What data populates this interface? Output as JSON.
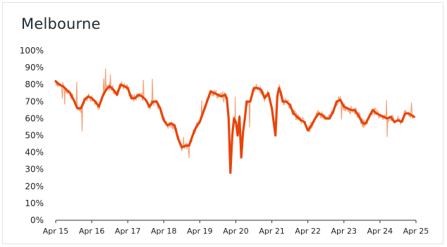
{
  "chart_data": {
    "type": "line",
    "title": "Melbourne",
    "xlabel": "",
    "ylabel": "",
    "ylim": [
      0,
      100
    ],
    "y_ticks": [
      "0%",
      "10%",
      "20%",
      "30%",
      "40%",
      "50%",
      "60%",
      "70%",
      "80%",
      "90%",
      "100%"
    ],
    "x_ticks": [
      "Apr 15",
      "Apr 16",
      "Apr 17",
      "Apr 18",
      "Apr 19",
      "Apr 20",
      "Apr 21",
      "Apr 22",
      "Apr 23",
      "Apr 24",
      "Apr 25"
    ],
    "grid": false,
    "colors": {
      "smoothed": "#e8450a",
      "raw": "#f2a27a",
      "axis": "#333333"
    },
    "series": [
      {
        "x": [
          2015.25,
          2015.35,
          2015.45,
          2015.55,
          2015.65,
          2015.75,
          2015.85,
          2015.95,
          2016.05,
          2016.15,
          2016.25,
          2016.35,
          2016.45,
          2016.55,
          2016.65,
          2016.75,
          2016.85,
          2016.95,
          2017.05,
          2017.15,
          2017.25,
          2017.35,
          2017.45,
          2017.55,
          2017.65,
          2017.75,
          2017.85,
          2017.95,
          2018.05,
          2018.15,
          2018.25,
          2018.35,
          2018.45,
          2018.55,
          2018.65,
          2018.75,
          2018.85,
          2018.95,
          2019.05,
          2019.15,
          2019.25,
          2019.35,
          2019.45,
          2019.55,
          2019.65,
          2019.75,
          2019.85,
          2019.95,
          2020.0,
          2020.05,
          2020.1,
          2020.15,
          2020.2,
          2020.25,
          2020.3,
          2020.35,
          2020.4,
          2020.45,
          2020.5,
          2020.55,
          2020.65,
          2020.75,
          2020.85,
          2020.95,
          2021.05,
          2021.15,
          2021.25,
          2021.35,
          2021.4,
          2021.45,
          2021.5,
          2021.55,
          2021.65,
          2021.75,
          2021.85,
          2021.95,
          2022.05,
          2022.15,
          2022.25,
          2022.35,
          2022.45,
          2022.55,
          2022.65,
          2022.75,
          2022.85,
          2022.95,
          2023.05,
          2023.15,
          2023.25,
          2023.35,
          2023.45,
          2023.55,
          2023.65,
          2023.75,
          2023.8,
          2023.85,
          2023.95,
          2024.05,
          2024.15,
          2024.25,
          2024.35,
          2024.45,
          2024.55,
          2024.65,
          2024.75,
          2024.85,
          2024.95,
          2025.05,
          2025.2
        ],
        "values": [
          82,
          80,
          79,
          77,
          75,
          71,
          66,
          66,
          71,
          73,
          72,
          70,
          67,
          73,
          77,
          79,
          77,
          74,
          80,
          79,
          78,
          72,
          72,
          74,
          73,
          71,
          67,
          70,
          70,
          66,
          59,
          56,
          57,
          56,
          48,
          43,
          44,
          44,
          50,
          55,
          58,
          64,
          70,
          76,
          75,
          74,
          73,
          74,
          72,
          60,
          28,
          50,
          60,
          58,
          50,
          61,
          37,
          52,
          60,
          70,
          70,
          78,
          78,
          77,
          72,
          75,
          66,
          50,
          73,
          78,
          75,
          70,
          70,
          68,
          63,
          61,
          59,
          58,
          53,
          56,
          60,
          63,
          62,
          60,
          60,
          64,
          70,
          71,
          67,
          66,
          65,
          65,
          62,
          58,
          57,
          57,
          61,
          65,
          63,
          62,
          61,
          60,
          61,
          58,
          59,
          58,
          63,
          63,
          61
        ]
      }
    ]
  }
}
